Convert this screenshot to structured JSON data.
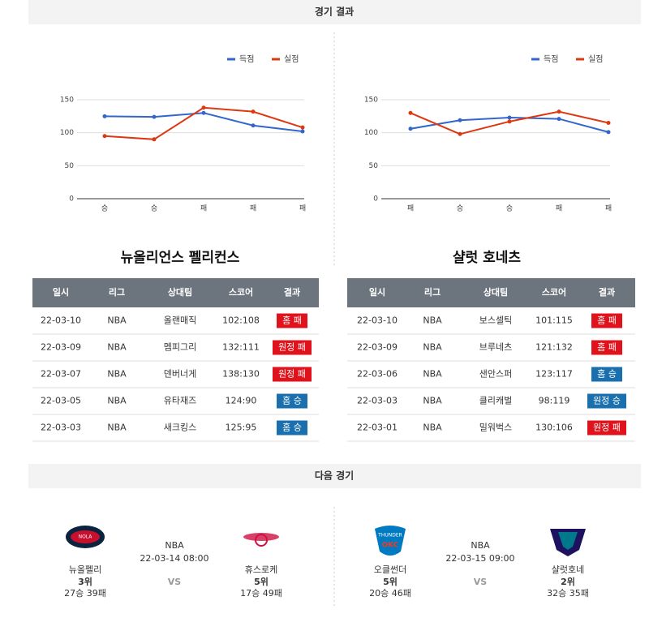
{
  "header": {
    "results_title": "경기 결과",
    "next_title": "다음 경기"
  },
  "chart_data": [
    {
      "type": "line",
      "categories": [
        "승",
        "승",
        "패",
        "패",
        "패"
      ],
      "series": [
        {
          "name": "득점",
          "color": "#3366cc",
          "values": [
            125,
            124,
            130,
            111,
            102
          ]
        },
        {
          "name": "실점",
          "color": "#dc3912",
          "values": [
            95,
            90,
            138,
            132,
            108
          ]
        }
      ],
      "ylim": [
        0,
        150
      ],
      "yticks": [
        0,
        50,
        100,
        150
      ],
      "grid": true,
      "legend": "top-right"
    },
    {
      "type": "line",
      "categories": [
        "패",
        "승",
        "승",
        "패",
        "패"
      ],
      "series": [
        {
          "name": "득점",
          "color": "#3366cc",
          "values": [
            106,
            119,
            123,
            121,
            101
          ]
        },
        {
          "name": "실점",
          "color": "#dc3912",
          "values": [
            130,
            98,
            117,
            132,
            115
          ]
        }
      ],
      "ylim": [
        0,
        150
      ],
      "yticks": [
        0,
        50,
        100,
        150
      ],
      "grid": true,
      "legend": "top-right"
    }
  ],
  "tables": [
    {
      "title": "뉴올리언스 펠리컨스",
      "columns": [
        "일시",
        "리그",
        "상대팀",
        "스코어",
        "결과"
      ],
      "rows": [
        [
          "22-03-10",
          "NBA",
          "올랜매직",
          "102:108",
          "홈 패"
        ],
        [
          "22-03-09",
          "NBA",
          "멤피그리",
          "132:111",
          "원정 패"
        ],
        [
          "22-03-07",
          "NBA",
          "덴버너게",
          "138:130",
          "원정 패"
        ],
        [
          "22-03-05",
          "NBA",
          "유타재즈",
          "124:90",
          "홈 승"
        ],
        [
          "22-03-03",
          "NBA",
          "새크킹스",
          "125:95",
          "홈 승"
        ]
      ],
      "result_colors": [
        "#e0121b",
        "#e0121b",
        "#e0121b",
        "#1a6fae",
        "#1a6fae"
      ]
    },
    {
      "title": "샬럿 호네츠",
      "columns": [
        "일시",
        "리그",
        "상대팀",
        "스코어",
        "결과"
      ],
      "rows": [
        [
          "22-03-10",
          "NBA",
          "보스셀틱",
          "101:115",
          "홈 패"
        ],
        [
          "22-03-09",
          "NBA",
          "브루네츠",
          "121:132",
          "홈 패"
        ],
        [
          "22-03-06",
          "NBA",
          "샌안스퍼",
          "123:117",
          "홈 승"
        ],
        [
          "22-03-03",
          "NBA",
          "클리캐벌",
          "98:119",
          "원정 승"
        ],
        [
          "22-03-01",
          "NBA",
          "밀워벅스",
          "130:106",
          "원정 패"
        ]
      ],
      "result_colors": [
        "#e0121b",
        "#e0121b",
        "#1a6fae",
        "#1a6fae",
        "#e0121b"
      ]
    }
  ],
  "next_games": [
    {
      "home": {
        "name": "뉴올펠리",
        "rank": "3위",
        "record": "27승 39패"
      },
      "league": "NBA",
      "datetime": "22-03-14 08:00",
      "vs": "VS",
      "away": {
        "name": "휴스로케",
        "rank": "5위",
        "record": "17승 49패"
      }
    },
    {
      "home": {
        "name": "오클썬더",
        "rank": "5위",
        "record": "20승 46패"
      },
      "league": "NBA",
      "datetime": "22-03-15 09:00",
      "vs": "VS",
      "away": {
        "name": "샬럿호네",
        "rank": "2위",
        "record": "32승 35패"
      }
    }
  ]
}
